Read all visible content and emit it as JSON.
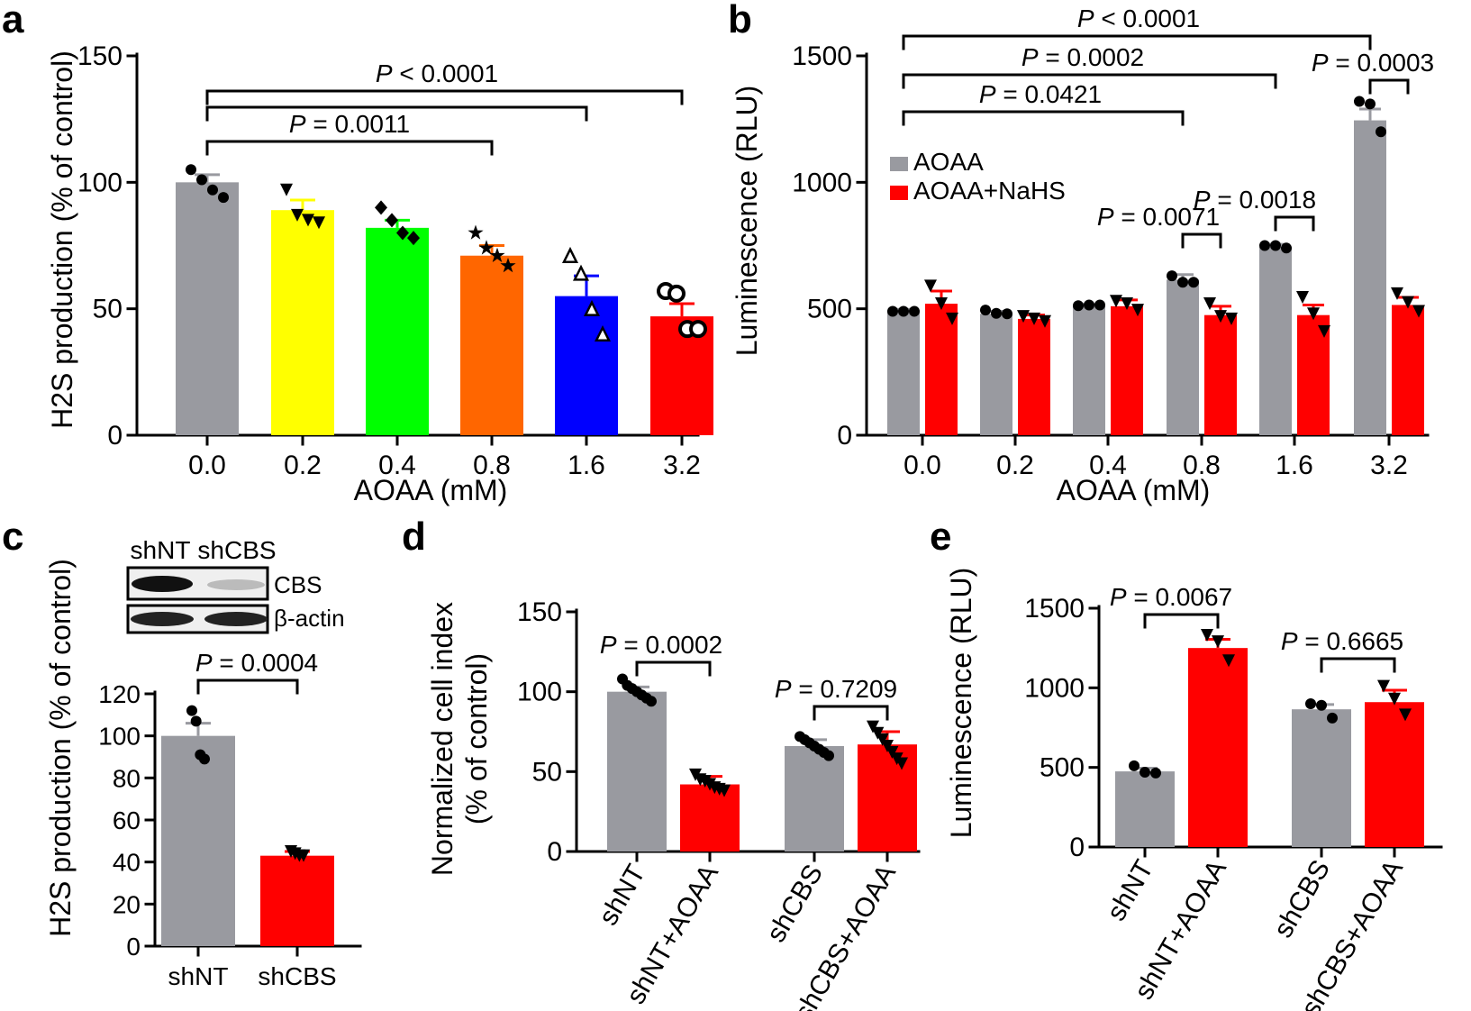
{
  "colors": {
    "gray": "#999aa0",
    "yellow": "#ffff00",
    "green": "#00ff00",
    "orange": "#ff6600",
    "blue": "#0000ff",
    "red": "#ff0000",
    "black": "#000000"
  },
  "chart_data": [
    {
      "panel": "a",
      "type": "bar",
      "ylabel": "H2S production (% of control)",
      "xlabel": "AOAA (mM)",
      "ylim": [
        0,
        150
      ],
      "yticks": [
        0,
        50,
        100,
        150
      ],
      "categories": [
        "0.0",
        "0.2",
        "0.4",
        "0.8",
        "1.6",
        "3.2"
      ],
      "bar_colors": [
        "gray",
        "yellow",
        "green",
        "orange",
        "blue",
        "red"
      ],
      "markers": [
        "circle",
        "triangle-down",
        "diamond",
        "star",
        "triangle-up-open",
        "circle-open"
      ],
      "values": [
        100,
        89,
        82,
        71,
        55,
        47
      ],
      "errors": [
        3,
        4,
        3,
        4,
        8,
        5
      ],
      "points": [
        [
          105,
          101,
          97,
          94
        ],
        [
          97,
          87,
          85,
          84
        ],
        [
          90,
          85,
          80,
          78
        ],
        [
          80,
          74,
          71,
          67
        ],
        [
          71,
          64,
          50,
          40
        ],
        [
          57,
          56,
          42,
          42
        ]
      ],
      "comparisons": [
        {
          "from": 0,
          "to": 3,
          "label": "P = 0.0011"
        },
        {
          "from": 0,
          "to": 4,
          "label": ""
        },
        {
          "from": 0,
          "to": 5,
          "label": "P < 0.0001"
        }
      ]
    },
    {
      "panel": "b",
      "type": "bar",
      "ylabel": "Luminescence (RLU)",
      "xlabel": "AOAA (mM)",
      "ylim": [
        0,
        1500
      ],
      "yticks": [
        0,
        500,
        1000,
        1500
      ],
      "categories": [
        "0.0",
        "0.2",
        "0.4",
        "0.8",
        "1.6",
        "3.2"
      ],
      "legend": [
        "AOAA",
        "AOAA+NaHS"
      ],
      "series": [
        {
          "name": "AOAA",
          "color": "gray",
          "marker": "circle",
          "values": [
            490,
            480,
            510,
            615,
            745,
            1245
          ],
          "errors": [
            8,
            10,
            8,
            20,
            10,
            45
          ],
          "points": [
            [
              490,
              490,
              490
            ],
            [
              495,
              482,
              480
            ],
            [
              512,
              515,
              515
            ],
            [
              630,
              605,
              605
            ],
            [
              750,
              750,
              740
            ],
            [
              1320,
              1310,
              1200
            ]
          ]
        },
        {
          "name": "AOAA+NaHS",
          "color": "red",
          "marker": "triangle-down",
          "values": [
            520,
            460,
            510,
            475,
            475,
            515
          ],
          "errors": [
            50,
            15,
            25,
            35,
            40,
            30
          ],
          "points": [
            [
              590,
              520,
              460
            ],
            [
              470,
              460,
              450
            ],
            [
              530,
              520,
              495
            ],
            [
              520,
              470,
              460
            ],
            [
              545,
              480,
              410
            ],
            [
              560,
              525,
              490
            ]
          ]
        }
      ],
      "comparisons": [
        {
          "label": "P = 0.0071"
        },
        {
          "label": "P = 0.0018"
        },
        {
          "label": "P = 0.0003"
        },
        {
          "label": "P = 0.0421"
        },
        {
          "label": "P = 0.0002"
        },
        {
          "label": "P < 0.0001"
        }
      ]
    },
    {
      "panel": "c",
      "type": "bar",
      "ylabel": "H2S production (% of control)",
      "ylim": [
        0,
        120
      ],
      "yticks": [
        0,
        20,
        40,
        60,
        80,
        100,
        120
      ],
      "categories": [
        "shNT",
        "shCBS"
      ],
      "bar_colors": [
        "gray",
        "red"
      ],
      "values": [
        100,
        43
      ],
      "errors": [
        6,
        2
      ],
      "points": [
        [
          112,
          107,
          91,
          89
        ],
        [
          45,
          44,
          43,
          43
        ]
      ],
      "comparisons": [
        {
          "from": 0,
          "to": 1,
          "label": "P = 0.0004"
        }
      ],
      "blot": {
        "columns": [
          "shNT",
          "shCBS"
        ],
        "rows": [
          "CBS",
          "β-actin"
        ]
      }
    },
    {
      "panel": "d",
      "type": "bar",
      "ylabel": "Normalized cell index",
      "ylabel2": "(% of control)",
      "ylim": [
        0,
        150
      ],
      "yticks": [
        0,
        50,
        100,
        150
      ],
      "categories": [
        "shNT",
        "shNT+AOAA",
        "shCBS",
        "shCBS+AOAA"
      ],
      "bar_colors": [
        "gray",
        "red",
        "gray",
        "red"
      ],
      "values": [
        100,
        42,
        66,
        67
      ],
      "errors": [
        3,
        5,
        4,
        8
      ],
      "points": [
        [
          108,
          104,
          102,
          100,
          98,
          96,
          94
        ],
        [
          48,
          45,
          44,
          42,
          40,
          39,
          38
        ],
        [
          72,
          70,
          68,
          66,
          64,
          62,
          60
        ],
        [
          78,
          74,
          70,
          66,
          62,
          58,
          55
        ]
      ],
      "comparisons": [
        {
          "from": 0,
          "to": 1,
          "label": "P = 0.0002"
        },
        {
          "from": 2,
          "to": 3,
          "label": "P = 0.7209"
        }
      ]
    },
    {
      "panel": "e",
      "type": "bar",
      "ylabel": "Luminescence (RLU)",
      "ylim": [
        0,
        1500
      ],
      "yticks": [
        0,
        500,
        1000,
        1500
      ],
      "categories": [
        "shNT",
        "shNT+AOAA",
        "shCBS",
        "shCBS+AOAA"
      ],
      "bar_colors": [
        "gray",
        "red",
        "gray",
        "red"
      ],
      "values": [
        475,
        1250,
        865,
        910
      ],
      "errors": [
        20,
        55,
        30,
        75
      ],
      "points": [
        [
          510,
          470,
          465
        ],
        [
          1330,
          1290,
          1170
        ],
        [
          900,
          890,
          810
        ],
        [
          1010,
          930,
          830
        ]
      ],
      "comparisons": [
        {
          "from": 0,
          "to": 1,
          "label": "P = 0.0067"
        },
        {
          "from": 2,
          "to": 3,
          "label": "P = 0.6665"
        }
      ]
    }
  ],
  "panel_labels": [
    "a",
    "b",
    "c",
    "d",
    "e"
  ]
}
